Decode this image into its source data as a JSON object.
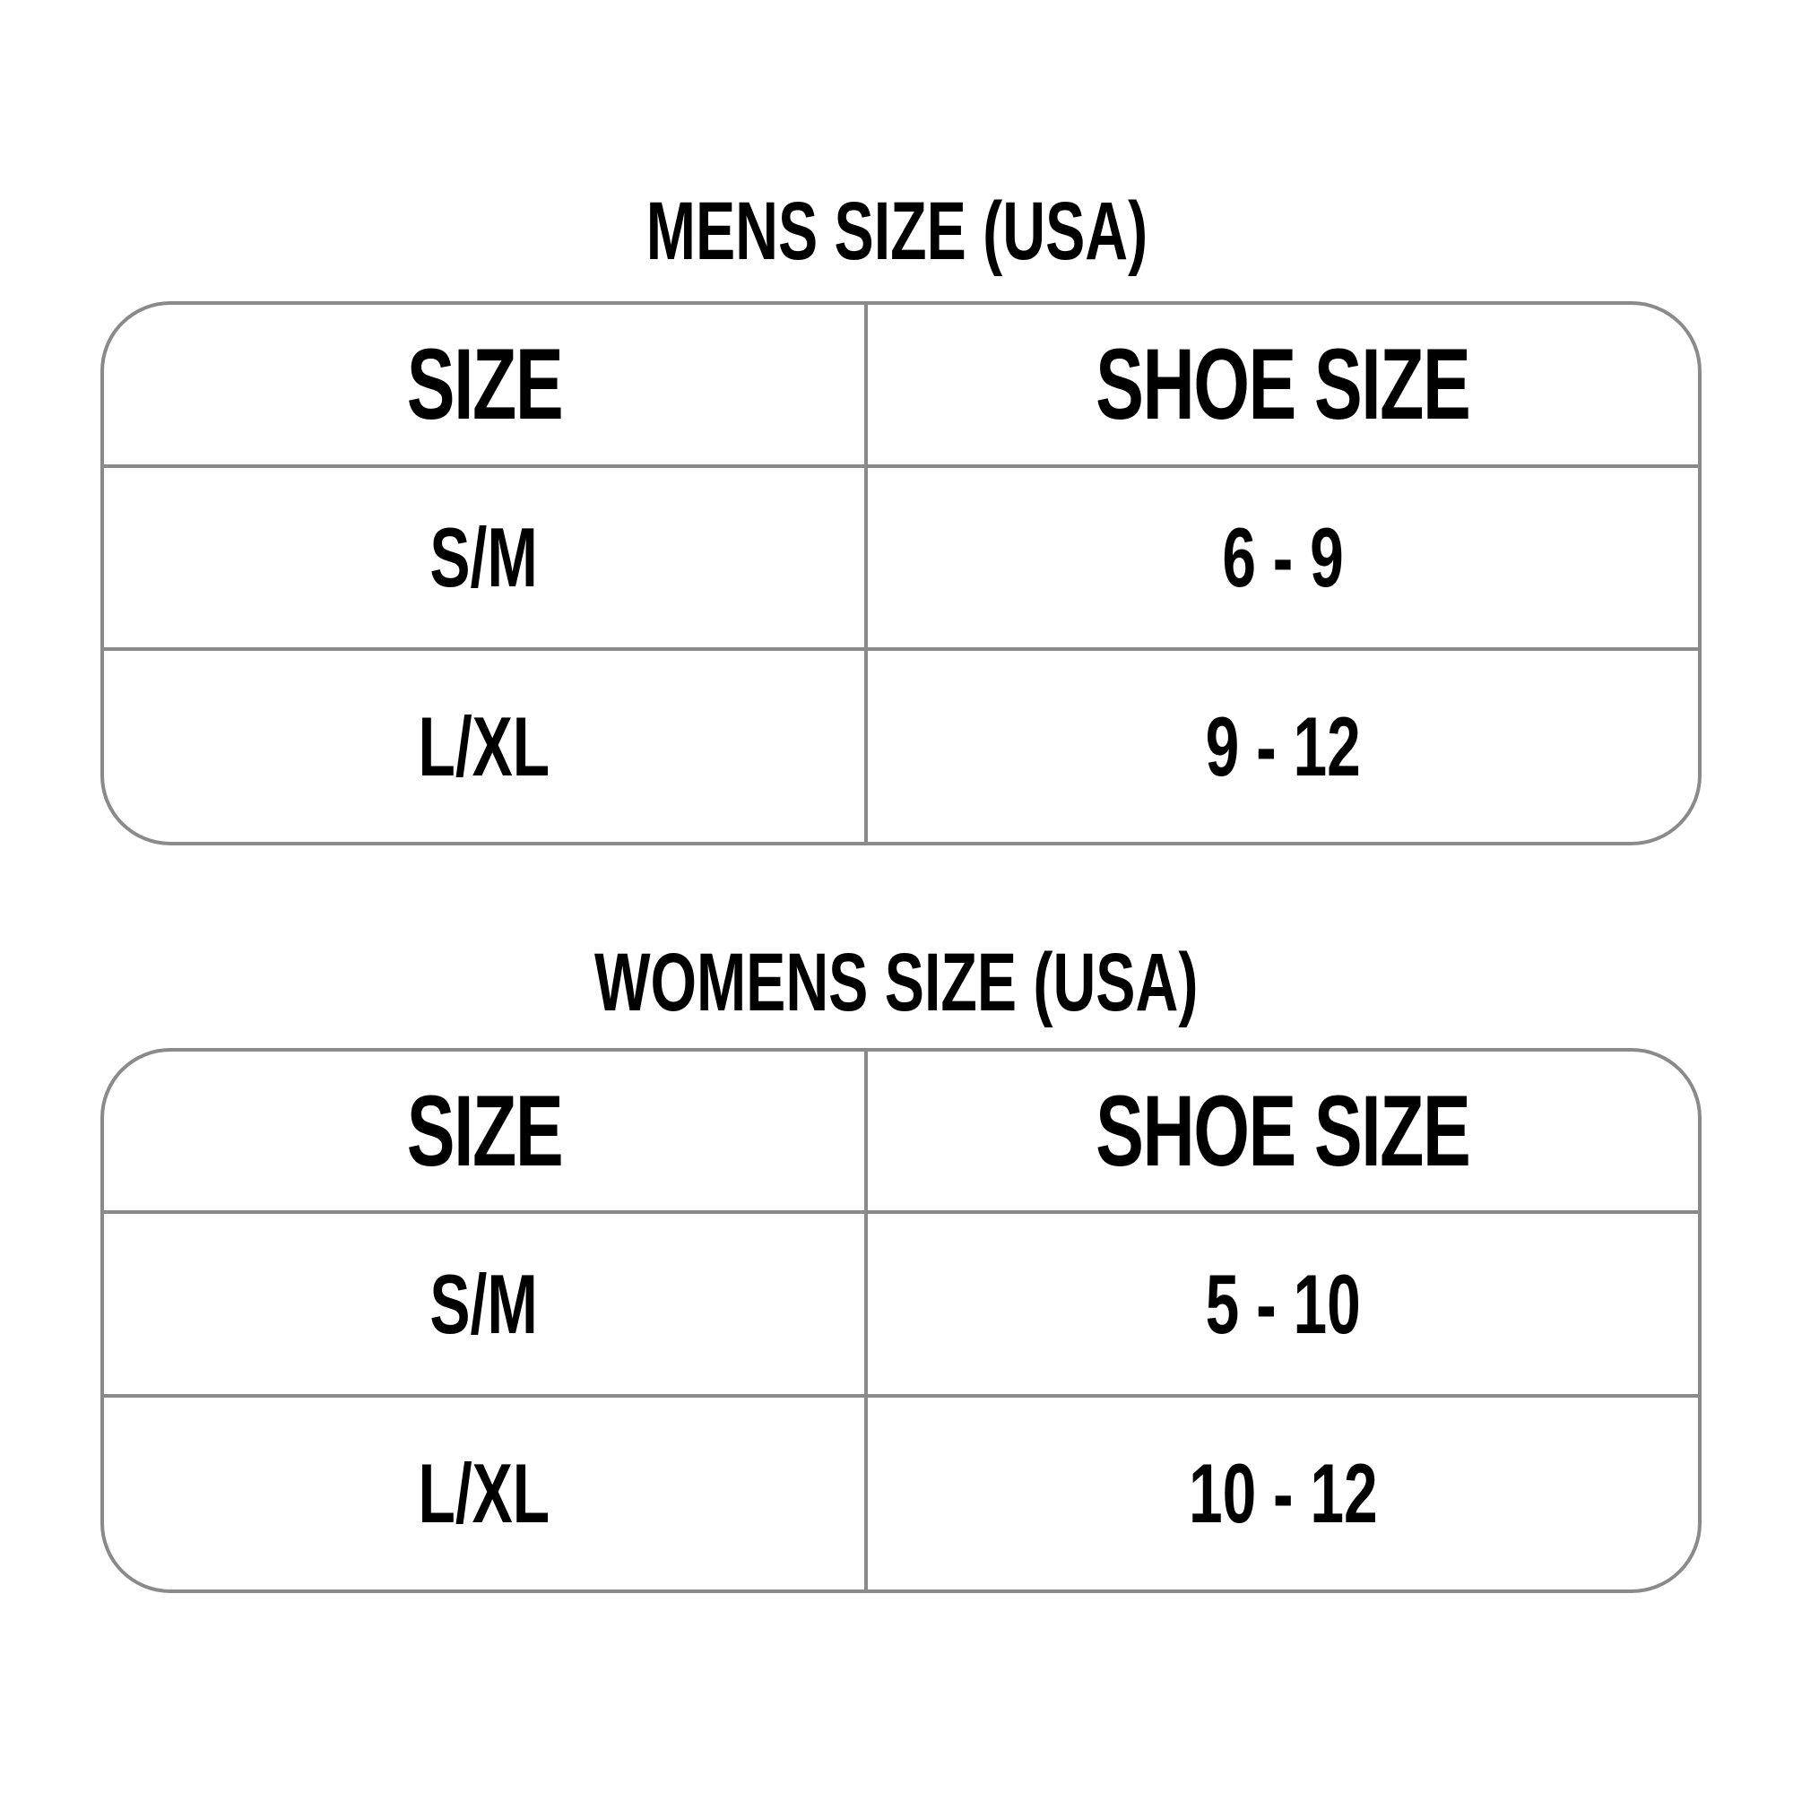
{
  "sections": [
    {
      "title": "MENS SIZE (USA)",
      "headers": [
        "SIZE",
        "SHOE SIZE"
      ],
      "rows": [
        [
          "S/M",
          "6 - 9"
        ],
        [
          "L/XL",
          "9 - 12"
        ]
      ]
    },
    {
      "title": "WOMENS SIZE (USA)",
      "headers": [
        "SIZE",
        "SHOE SIZE"
      ],
      "rows": [
        [
          "S/M",
          "5 - 10"
        ],
        [
          "L/XL",
          "10 - 12"
        ]
      ]
    }
  ],
  "colors": {
    "border": "#8a8a8a",
    "text": "#000000",
    "background": "#ffffff"
  }
}
